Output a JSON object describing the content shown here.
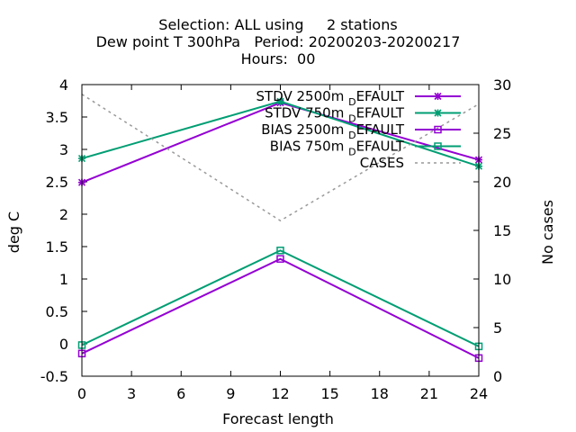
{
  "chart_data": {
    "type": "line",
    "title_lines": [
      "Selection: ALL using     2 stations",
      "Dew point T 300hPa   Period: 20200203-20200217",
      "Hours:  00"
    ],
    "xlabel": "Forecast length",
    "ylabel": "deg C",
    "y2label": "No cases",
    "x": [
      0,
      12,
      24
    ],
    "xticks": [
      0,
      3,
      6,
      9,
      12,
      15,
      18,
      21,
      24
    ],
    "xlim": [
      0,
      24
    ],
    "ylim": [
      -0.5,
      4
    ],
    "yticks": [
      -0.5,
      0,
      0.5,
      1,
      1.5,
      2,
      2.5,
      3,
      3.5,
      4
    ],
    "y2lim": [
      0,
      30
    ],
    "y2ticks": [
      0,
      5,
      10,
      15,
      20,
      25,
      30
    ],
    "legend_position": "top-right",
    "grid": false,
    "series": [
      {
        "name": "STDV 2500m",
        "sub": "D",
        "suffix": "EFAULT",
        "color": "#9400d3",
        "marker": "star",
        "axis": "y1",
        "values": [
          2.49,
          3.72,
          2.84
        ]
      },
      {
        "name": "STDV 750m",
        "sub": "D",
        "suffix": "EFAULT",
        "color": "#009e73",
        "marker": "star",
        "axis": "y1",
        "values": [
          2.86,
          3.74,
          2.74
        ]
      },
      {
        "name": "BIAS 2500m",
        "sub": "D",
        "suffix": "EFAULT",
        "color": "#9400d3",
        "marker": "square",
        "axis": "y1",
        "values": [
          -0.15,
          1.31,
          -0.22
        ]
      },
      {
        "name": "BIAS 750m",
        "sub": "D",
        "suffix": "EFAULT",
        "color": "#009e73",
        "marker": "square",
        "axis": "y1",
        "values": [
          -0.02,
          1.44,
          -0.04
        ]
      },
      {
        "name": "CASES",
        "sub": "",
        "suffix": "",
        "color": "#999999",
        "marker": "none",
        "dashed": true,
        "axis": "y2",
        "values": [
          29,
          16,
          28
        ]
      }
    ]
  }
}
